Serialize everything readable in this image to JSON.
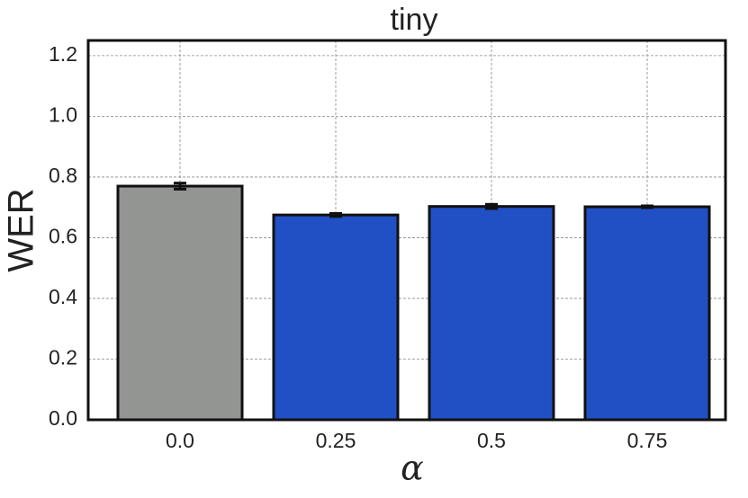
{
  "chart_data": {
    "type": "bar",
    "title": "tiny",
    "x_label": "α",
    "y_label": "WER",
    "categories": [
      "0.0",
      "0.25",
      "0.5",
      "0.75"
    ],
    "values": [
      0.77,
      0.675,
      0.703,
      0.702
    ],
    "errors": [
      0.01,
      0.005,
      0.007,
      0.003
    ],
    "colors": [
      "#939593",
      "#2050c4",
      "#2050c4",
      "#2050c4"
    ],
    "ylim": [
      0,
      1.25
    ],
    "yticks": [
      {
        "value": 0,
        "label": "0.0"
      },
      0.2,
      0.4,
      0.6,
      0.8,
      {
        "value": 1,
        "label": "1.0"
      },
      1.2
    ],
    "grid": true
  }
}
